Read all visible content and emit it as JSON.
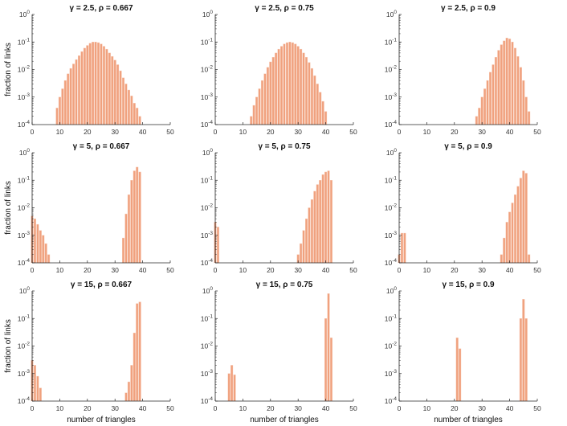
{
  "style": {
    "bar_color": "#f0a17e",
    "bar_edge": "#f7cbb6",
    "axis_color": "#262626"
  },
  "chart_data": [
    {
      "type": "bar",
      "title": "γ = 2.5, ρ = 0.667",
      "xlabel": "",
      "ylabel": "fraction of links",
      "xlim": [
        0,
        50
      ],
      "ylim_log10": [
        -4,
        0
      ],
      "x_ticks": [
        0,
        10,
        20,
        30,
        40,
        50
      ],
      "y_ticks": [
        "10^0",
        "10^-1",
        "10^-2",
        "10^-3",
        "10^-4"
      ],
      "scale_y": "log",
      "x": [
        9,
        10,
        11,
        12,
        13,
        14,
        15,
        16,
        17,
        18,
        19,
        20,
        21,
        22,
        23,
        24,
        25,
        26,
        27,
        28,
        29,
        30,
        31,
        32,
        33,
        34,
        35,
        36,
        37,
        38,
        39
      ],
      "values": [
        0.0004,
        0.001,
        0.002,
        0.004,
        0.007,
        0.011,
        0.016,
        0.023,
        0.032,
        0.045,
        0.06,
        0.075,
        0.09,
        0.1,
        0.1,
        0.095,
        0.085,
        0.07,
        0.055,
        0.04,
        0.03,
        0.022,
        0.015,
        0.009,
        0.005,
        0.003,
        0.0018,
        0.0011,
        0.0006,
        0.0004,
        0.0002
      ]
    },
    {
      "type": "bar",
      "title": "γ = 2.5, ρ = 0.75",
      "xlabel": "",
      "ylabel": "",
      "xlim": [
        0,
        50
      ],
      "ylim_log10": [
        -4,
        0
      ],
      "x_ticks": [
        0,
        10,
        20,
        30,
        40,
        50
      ],
      "y_ticks": [
        "10^0",
        "10^-1",
        "10^-2",
        "10^-3",
        "10^-4"
      ],
      "scale_y": "log",
      "x": [
        13,
        14,
        15,
        16,
        17,
        18,
        19,
        20,
        21,
        22,
        23,
        24,
        25,
        26,
        27,
        28,
        29,
        30,
        31,
        32,
        33,
        34,
        35,
        36,
        37,
        38,
        39,
        40
      ],
      "values": [
        0.0002,
        0.0005,
        0.001,
        0.002,
        0.004,
        0.007,
        0.012,
        0.019,
        0.028,
        0.04,
        0.055,
        0.07,
        0.085,
        0.095,
        0.1,
        0.095,
        0.085,
        0.07,
        0.055,
        0.04,
        0.028,
        0.018,
        0.011,
        0.006,
        0.003,
        0.0015,
        0.0007,
        0.0003
      ]
    },
    {
      "type": "bar",
      "title": "γ = 2.5, ρ = 0.9",
      "xlabel": "",
      "ylabel": "",
      "xlim": [
        0,
        50
      ],
      "ylim_log10": [
        -4,
        0
      ],
      "x_ticks": [
        0,
        10,
        20,
        30,
        40,
        50
      ],
      "y_ticks": [
        "10^0",
        "10^-1",
        "10^-2",
        "10^-3",
        "10^-4"
      ],
      "scale_y": "log",
      "x": [
        28,
        29,
        30,
        31,
        32,
        33,
        34,
        35,
        36,
        37,
        38,
        39,
        40,
        41,
        42,
        43,
        44,
        45,
        46,
        47
      ],
      "values": [
        0.0002,
        0.0004,
        0.001,
        0.002,
        0.004,
        0.008,
        0.015,
        0.028,
        0.05,
        0.08,
        0.11,
        0.14,
        0.13,
        0.1,
        0.06,
        0.03,
        0.012,
        0.004,
        0.001,
        0.0003
      ]
    },
    {
      "type": "bar",
      "title": "γ = 5, ρ = 0.667",
      "xlabel": "",
      "ylabel": "fraction of links",
      "xlim": [
        0,
        50
      ],
      "ylim_log10": [
        -4,
        0
      ],
      "x_ticks": [
        0,
        10,
        20,
        30,
        40,
        50
      ],
      "y_ticks": [
        "10^0",
        "10^-1",
        "10^-2",
        "10^-3",
        "10^-4"
      ],
      "scale_y": "log",
      "x": [
        0,
        1,
        2,
        3,
        4,
        5,
        6,
        33,
        34,
        35,
        36,
        37,
        38,
        39
      ],
      "values": [
        0.005,
        0.004,
        0.0025,
        0.0015,
        0.001,
        0.0005,
        0.0002,
        0.0008,
        0.006,
        0.03,
        0.1,
        0.22,
        0.3,
        0.2
      ]
    },
    {
      "type": "bar",
      "title": "γ = 5, ρ = 0.75",
      "xlabel": "",
      "ylabel": "",
      "xlim": [
        0,
        50
      ],
      "ylim_log10": [
        -4,
        0
      ],
      "x_ticks": [
        0,
        10,
        20,
        30,
        40,
        50
      ],
      "y_ticks": [
        "10^0",
        "10^-1",
        "10^-2",
        "10^-3",
        "10^-4"
      ],
      "scale_y": "log",
      "x": [
        0,
        1,
        30,
        31,
        32,
        33,
        34,
        35,
        36,
        37,
        38,
        39,
        40,
        41,
        42
      ],
      "values": [
        0.003,
        0.002,
        0.0002,
        0.0005,
        0.0015,
        0.004,
        0.01,
        0.02,
        0.04,
        0.07,
        0.1,
        0.16,
        0.2,
        0.22,
        0.1
      ]
    },
    {
      "type": "bar",
      "title": "γ = 5, ρ = 0.9",
      "xlabel": "",
      "ylabel": "",
      "xlim": [
        0,
        50
      ],
      "ylim_log10": [
        -4,
        0
      ],
      "x_ticks": [
        0,
        10,
        20,
        30,
        40,
        50
      ],
      "y_ticks": [
        "10^0",
        "10^-1",
        "10^-2",
        "10^-3",
        "10^-4"
      ],
      "scale_y": "log",
      "x": [
        0,
        1,
        2,
        3,
        37,
        38,
        39,
        40,
        41,
        42,
        43,
        44,
        45,
        46,
        47
      ],
      "values": [
        0.0002,
        0.0012,
        0.0012,
        0.0001,
        0.0002,
        0.0008,
        0.003,
        0.007,
        0.015,
        0.03,
        0.06,
        0.12,
        0.22,
        0.18,
        0.0002
      ]
    },
    {
      "type": "bar",
      "title": "γ = 15, ρ = 0.667",
      "xlabel": "number of triangles",
      "ylabel": "fraction of links",
      "xlim": [
        0,
        50
      ],
      "ylim_log10": [
        -4,
        0
      ],
      "x_ticks": [
        0,
        10,
        20,
        30,
        40,
        50
      ],
      "y_ticks": [
        "10^0",
        "10^-1",
        "10^-2",
        "10^-3",
        "10^-4"
      ],
      "scale_y": "log",
      "x": [
        0,
        1,
        2,
        3,
        34,
        35,
        36,
        37,
        38,
        39
      ],
      "values": [
        0.003,
        0.002,
        0.0008,
        0.0003,
        0.0002,
        0.0005,
        0.002,
        0.03,
        0.35,
        0.4
      ]
    },
    {
      "type": "bar",
      "title": "γ = 15, ρ = 0.75",
      "xlabel": "number of triangles",
      "ylabel": "",
      "xlim": [
        0,
        50
      ],
      "ylim_log10": [
        -4,
        0
      ],
      "x_ticks": [
        0,
        10,
        20,
        30,
        40,
        50
      ],
      "y_ticks": [
        "10^0",
        "10^-1",
        "10^-2",
        "10^-3",
        "10^-4"
      ],
      "scale_y": "log",
      "x": [
        5,
        6,
        7,
        40,
        41,
        42,
        43
      ],
      "values": [
        0.001,
        0.002,
        0.0009,
        0.1,
        0.8,
        0.02,
        0.0001
      ]
    },
    {
      "type": "bar",
      "title": "γ = 15, ρ = 0.9",
      "xlabel": "number of triangles",
      "ylabel": "",
      "xlim": [
        0,
        50
      ],
      "ylim_log10": [
        -4,
        0
      ],
      "x_ticks": [
        0,
        10,
        20,
        30,
        40,
        50
      ],
      "y_ticks": [
        "10^0",
        "10^-1",
        "10^-2",
        "10^-3",
        "10^-4"
      ],
      "scale_y": "log",
      "x": [
        21,
        22,
        44,
        45,
        46
      ],
      "values": [
        0.02,
        0.008,
        0.1,
        0.5,
        0.1
      ]
    }
  ]
}
